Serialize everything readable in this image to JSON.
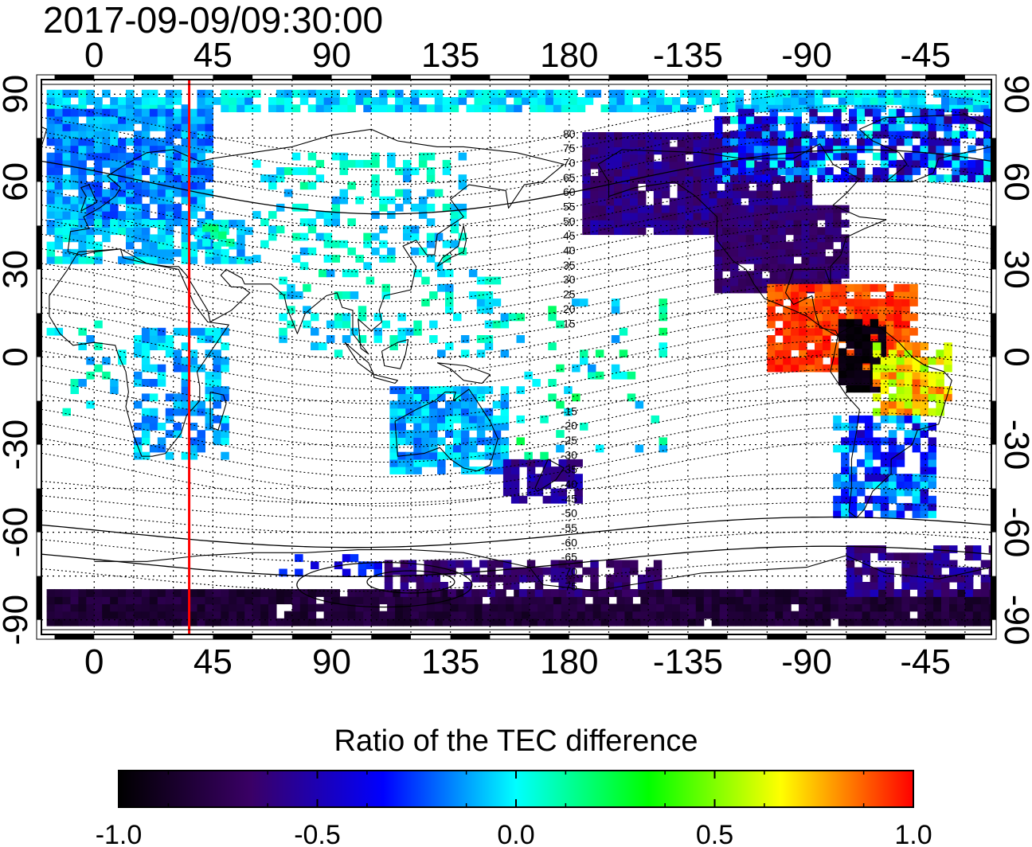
{
  "title": "2017-09-09/09:30:00",
  "map": {
    "x_tick_labels": [
      "0",
      "45",
      "90",
      "135",
      "180",
      "-135",
      "-90",
      "-45"
    ],
    "y_tick_labels": [
      "90",
      "60",
      "30",
      "0",
      "-30",
      "-60",
      "-90"
    ],
    "geomagnetic_contour_labels": [
      "80",
      "75",
      "70",
      "65",
      "60",
      "55",
      "50",
      "45",
      "40",
      "35",
      "30",
      "25",
      "20",
      "15",
      "-15",
      "-20",
      "-25",
      "-30",
      "-35",
      "-40",
      "-45",
      "-50",
      "-55",
      "-60",
      "-65",
      "-70",
      "-75"
    ],
    "marker_line": {
      "longitude": 36,
      "color": "#ff0000"
    },
    "lon_range": [
      -20,
      340
    ],
    "lat_range": [
      -95,
      95
    ]
  },
  "colorbar": {
    "title": "Ratio of the TEC difference",
    "tick_labels": [
      "-1.0",
      "-0.5",
      "0.0",
      "0.5",
      "1.0"
    ],
    "range": [
      -1.0,
      1.0
    ],
    "colormap": [
      "#000000",
      "#3a0066",
      "#0000ff",
      "#00ffff",
      "#00ff00",
      "#ffff00",
      "#ff0000"
    ]
  }
}
